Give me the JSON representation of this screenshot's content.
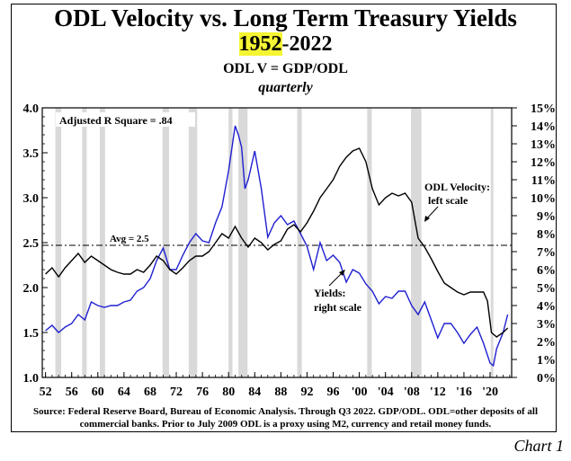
{
  "header": {
    "title": "ODL Velocity vs. Long Term Treasury Yields",
    "period_start": "1952",
    "period_end": "-2022",
    "formula": "ODL V = GDP/ODL",
    "frequency": "quarterly"
  },
  "source_text": "Source:  Federal Reserve Board, Bureau of Economic Analysis.  Through Q3 2022.  GDP/ODL.  ODL=other deposits of all commercial banks. Prior to July 2009 ODL is a proxy using M2, currency and retail money funds.",
  "chart_label": "Chart 1",
  "colors": {
    "velocity": "#000000",
    "yields": "#1f1fd0",
    "recession": "#d9d9d9",
    "highlight": "#f5f534"
  },
  "chart_data": {
    "type": "line",
    "x_range": [
      1951.5,
      2023.3
    ],
    "x_ticks": [
      "52",
      "56",
      "60",
      "64",
      "68",
      "72",
      "76",
      "80",
      "84",
      "88",
      "92",
      "96",
      "'00",
      "'04",
      "'08",
      "'12",
      "'16",
      "'20"
    ],
    "x_tick_years": [
      1952,
      1956,
      1960,
      1964,
      1968,
      1972,
      1976,
      1980,
      1984,
      1988,
      1992,
      1996,
      2000,
      2004,
      2008,
      2012,
      2016,
      2020
    ],
    "left_axis": {
      "ticks": [
        "1.0",
        "1.5",
        "2.0",
        "2.5",
        "3.0",
        "3.5",
        "4.0"
      ],
      "range": [
        1.0,
        4.0
      ]
    },
    "right_axis": {
      "ticks": [
        "0%",
        "1%",
        "2%",
        "3%",
        "4%",
        "5%",
        "6%",
        "7%",
        "8%",
        "9%",
        "10%",
        "11%",
        "12%",
        "13%",
        "14%",
        "15%"
      ],
      "range": [
        0,
        15
      ]
    },
    "recessions": [
      [
        1953.5,
        1954.4
      ],
      [
        1957.6,
        1958.3
      ],
      [
        1960.3,
        1961.1
      ],
      [
        1969.9,
        1970.9
      ],
      [
        1973.9,
        1975.2
      ],
      [
        1980.0,
        1980.6
      ],
      [
        1981.5,
        1982.9
      ],
      [
        1990.5,
        1991.2
      ],
      [
        2001.2,
        2001.9
      ],
      [
        2007.9,
        2009.5
      ],
      [
        2020.1,
        2020.5
      ]
    ],
    "average": {
      "label": "Avg = 2.5",
      "value": 2.47
    },
    "annotations": {
      "r_square": "Adjusted R Square = .84",
      "velocity_label_1": "ODL Velocity:",
      "velocity_label_2": "left scale",
      "yields_label_1": "Yields:",
      "yields_label_2": "right scale"
    },
    "series": [
      {
        "name": "ODL Velocity",
        "axis": "left",
        "points": [
          [
            1952,
            2.15
          ],
          [
            1953,
            2.22
          ],
          [
            1954,
            2.12
          ],
          [
            1955,
            2.22
          ],
          [
            1956,
            2.3
          ],
          [
            1957,
            2.38
          ],
          [
            1958,
            2.28
          ],
          [
            1959,
            2.35
          ],
          [
            1960,
            2.3
          ],
          [
            1961,
            2.25
          ],
          [
            1962,
            2.2
          ],
          [
            1963,
            2.17
          ],
          [
            1964,
            2.15
          ],
          [
            1965,
            2.15
          ],
          [
            1966,
            2.2
          ],
          [
            1967,
            2.17
          ],
          [
            1968,
            2.25
          ],
          [
            1969,
            2.35
          ],
          [
            1970,
            2.3
          ],
          [
            1971,
            2.2
          ],
          [
            1972,
            2.15
          ],
          [
            1973,
            2.22
          ],
          [
            1974,
            2.3
          ],
          [
            1975,
            2.35
          ],
          [
            1976,
            2.35
          ],
          [
            1977,
            2.4
          ],
          [
            1978,
            2.5
          ],
          [
            1979,
            2.6
          ],
          [
            1980,
            2.55
          ],
          [
            1981,
            2.68
          ],
          [
            1982,
            2.55
          ],
          [
            1983,
            2.45
          ],
          [
            1984,
            2.55
          ],
          [
            1985,
            2.5
          ],
          [
            1986,
            2.42
          ],
          [
            1987,
            2.48
          ],
          [
            1988,
            2.52
          ],
          [
            1989,
            2.65
          ],
          [
            1990,
            2.7
          ],
          [
            1991,
            2.62
          ],
          [
            1992,
            2.72
          ],
          [
            1993,
            2.85
          ],
          [
            1994,
            3.0
          ],
          [
            1995,
            3.1
          ],
          [
            1996,
            3.2
          ],
          [
            1997,
            3.35
          ],
          [
            1998,
            3.45
          ],
          [
            1999,
            3.52
          ],
          [
            2000,
            3.55
          ],
          [
            2001,
            3.4
          ],
          [
            2002,
            3.1
          ],
          [
            2003,
            2.92
          ],
          [
            2004,
            3.0
          ],
          [
            2005,
            3.05
          ],
          [
            2006,
            3.02
          ],
          [
            2007,
            3.05
          ],
          [
            2008,
            2.95
          ],
          [
            2009,
            2.55
          ],
          [
            2010,
            2.45
          ],
          [
            2011,
            2.32
          ],
          [
            2012,
            2.18
          ],
          [
            2013,
            2.05
          ],
          [
            2014,
            2.0
          ],
          [
            2015,
            1.95
          ],
          [
            2016,
            1.92
          ],
          [
            2017,
            1.95
          ],
          [
            2018,
            1.95
          ],
          [
            2019,
            1.95
          ],
          [
            2019.6,
            1.85
          ],
          [
            2020.2,
            1.5
          ],
          [
            2021,
            1.45
          ],
          [
            2022,
            1.5
          ],
          [
            2022.7,
            1.55
          ]
        ]
      },
      {
        "name": "Yields",
        "axis": "right",
        "points": [
          [
            1952,
            2.6
          ],
          [
            1953,
            2.9
          ],
          [
            1954,
            2.5
          ],
          [
            1955,
            2.8
          ],
          [
            1956,
            3.0
          ],
          [
            1957,
            3.5
          ],
          [
            1958,
            3.2
          ],
          [
            1959,
            4.2
          ],
          [
            1960,
            4.0
          ],
          [
            1961,
            3.9
          ],
          [
            1962,
            4.0
          ],
          [
            1963,
            4.0
          ],
          [
            1964,
            4.2
          ],
          [
            1965,
            4.3
          ],
          [
            1966,
            4.8
          ],
          [
            1967,
            5.0
          ],
          [
            1968,
            5.5
          ],
          [
            1969,
            6.5
          ],
          [
            1970,
            7.2
          ],
          [
            1971,
            6.0
          ],
          [
            1972,
            6.0
          ],
          [
            1973,
            6.8
          ],
          [
            1974,
            7.5
          ],
          [
            1975,
            8.0
          ],
          [
            1976,
            7.6
          ],
          [
            1977,
            7.5
          ],
          [
            1978,
            8.6
          ],
          [
            1979,
            9.5
          ],
          [
            1980,
            11.5
          ],
          [
            1981,
            14.0
          ],
          [
            1981.5,
            13.5
          ],
          [
            1982,
            12.8
          ],
          [
            1982.5,
            10.5
          ],
          [
            1983,
            11.0
          ],
          [
            1984,
            12.6
          ],
          [
            1985,
            10.5
          ],
          [
            1986,
            7.8
          ],
          [
            1987,
            8.6
          ],
          [
            1988,
            9.0
          ],
          [
            1989,
            8.5
          ],
          [
            1990,
            8.7
          ],
          [
            1991,
            8.0
          ],
          [
            1992,
            7.3
          ],
          [
            1993,
            6.0
          ],
          [
            1994,
            7.5
          ],
          [
            1995,
            6.5
          ],
          [
            1996,
            6.8
          ],
          [
            1997,
            6.4
          ],
          [
            1998,
            5.3
          ],
          [
            1999,
            6.0
          ],
          [
            2000,
            5.8
          ],
          [
            2001,
            5.2
          ],
          [
            2002,
            4.8
          ],
          [
            2003,
            4.1
          ],
          [
            2004,
            4.5
          ],
          [
            2005,
            4.4
          ],
          [
            2006,
            4.8
          ],
          [
            2007,
            4.8
          ],
          [
            2008,
            4.0
          ],
          [
            2009,
            3.5
          ],
          [
            2010,
            4.2
          ],
          [
            2011,
            3.2
          ],
          [
            2012,
            2.2
          ],
          [
            2013,
            3.0
          ],
          [
            2014,
            3.0
          ],
          [
            2015,
            2.5
          ],
          [
            2016,
            1.9
          ],
          [
            2017,
            2.4
          ],
          [
            2018,
            2.8
          ],
          [
            2019,
            1.9
          ],
          [
            2020,
            0.8
          ],
          [
            2020.5,
            0.65
          ],
          [
            2021,
            1.6
          ],
          [
            2022,
            2.5
          ],
          [
            2022.7,
            3.5
          ]
        ]
      }
    ]
  }
}
